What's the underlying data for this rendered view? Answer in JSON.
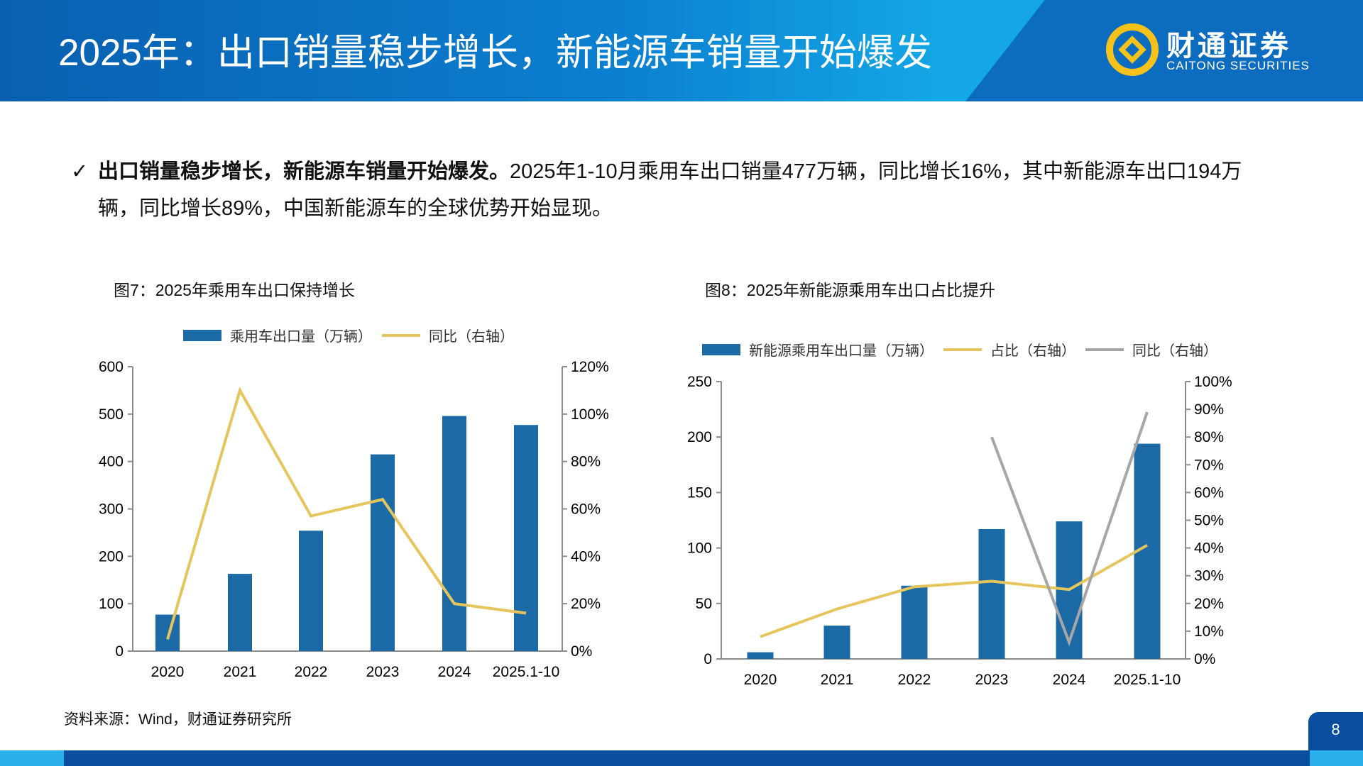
{
  "header": {
    "title": "2025年：出口销量稳步增长，新能源车销量开始爆发",
    "logo_cn": "财通证券",
    "logo_en": "CAITONG SECURITIES"
  },
  "summary": {
    "bold": "出口销量稳步增长，新能源车销量开始爆发。",
    "text": "2025年1-10月乘用车出口销量477万辆，同比增长16%，其中新能源车出口194万辆，同比增长89%，中国新能源车的全球优势开始显现。"
  },
  "source": "资料来源：Wind，财通证券研究所",
  "page_number": "8",
  "colors": {
    "bar": "#1b6aa5",
    "yellow": "#e6c65c",
    "gray": "#a6a6a6",
    "header": "#0b6cc0"
  },
  "chart_data": [
    {
      "type": "bar+line",
      "title": "图7：2025年乘用车出口保持增长",
      "categories": [
        "2020",
        "2021",
        "2022",
        "2023",
        "2024",
        "2025.1-10"
      ],
      "ylim": [
        0,
        600
      ],
      "yticks": [
        "0",
        "100",
        "200",
        "300",
        "400",
        "500",
        "600"
      ],
      "y2lim": [
        0,
        120
      ],
      "y2ticks": [
        "0%",
        "20%",
        "40%",
        "60%",
        "80%",
        "100%",
        "120%"
      ],
      "legend_position": "top",
      "grid": false,
      "series": [
        {
          "name": "乘用车出口量（万辆）",
          "type": "bar",
          "axis": "left",
          "values": [
            77,
            163,
            254,
            415,
            496,
            477
          ]
        },
        {
          "name": "同比（右轴）",
          "type": "line",
          "axis": "right",
          "color": "#e6c65c",
          "values": [
            5,
            110,
            57,
            64,
            20,
            16
          ]
        }
      ]
    },
    {
      "type": "bar+line",
      "title": "图8：2025年新能源乘用车出口占比提升",
      "categories": [
        "2020",
        "2021",
        "2022",
        "2023",
        "2024",
        "2025.1-10"
      ],
      "ylim": [
        0,
        250
      ],
      "yticks": [
        "0",
        "50",
        "100",
        "150",
        "200",
        "250"
      ],
      "y2lim": [
        0,
        100
      ],
      "y2ticks": [
        "0%",
        "10%",
        "20%",
        "30%",
        "40%",
        "50%",
        "60%",
        "70%",
        "80%",
        "90%",
        "100%"
      ],
      "legend_position": "top",
      "grid": false,
      "series": [
        {
          "name": "新能源乘用车出口量（万辆）",
          "type": "bar",
          "axis": "left",
          "values": [
            6,
            30,
            66,
            117,
            124,
            194
          ]
        },
        {
          "name": "占比（右轴）",
          "type": "line",
          "axis": "right",
          "color": "#e6c65c",
          "values": [
            8,
            18,
            26,
            28,
            25,
            41
          ]
        },
        {
          "name": "同比（右轴）",
          "type": "line",
          "axis": "right",
          "color": "#a6a6a6",
          "values": [
            null,
            null,
            null,
            80,
            6,
            89
          ]
        }
      ]
    }
  ]
}
